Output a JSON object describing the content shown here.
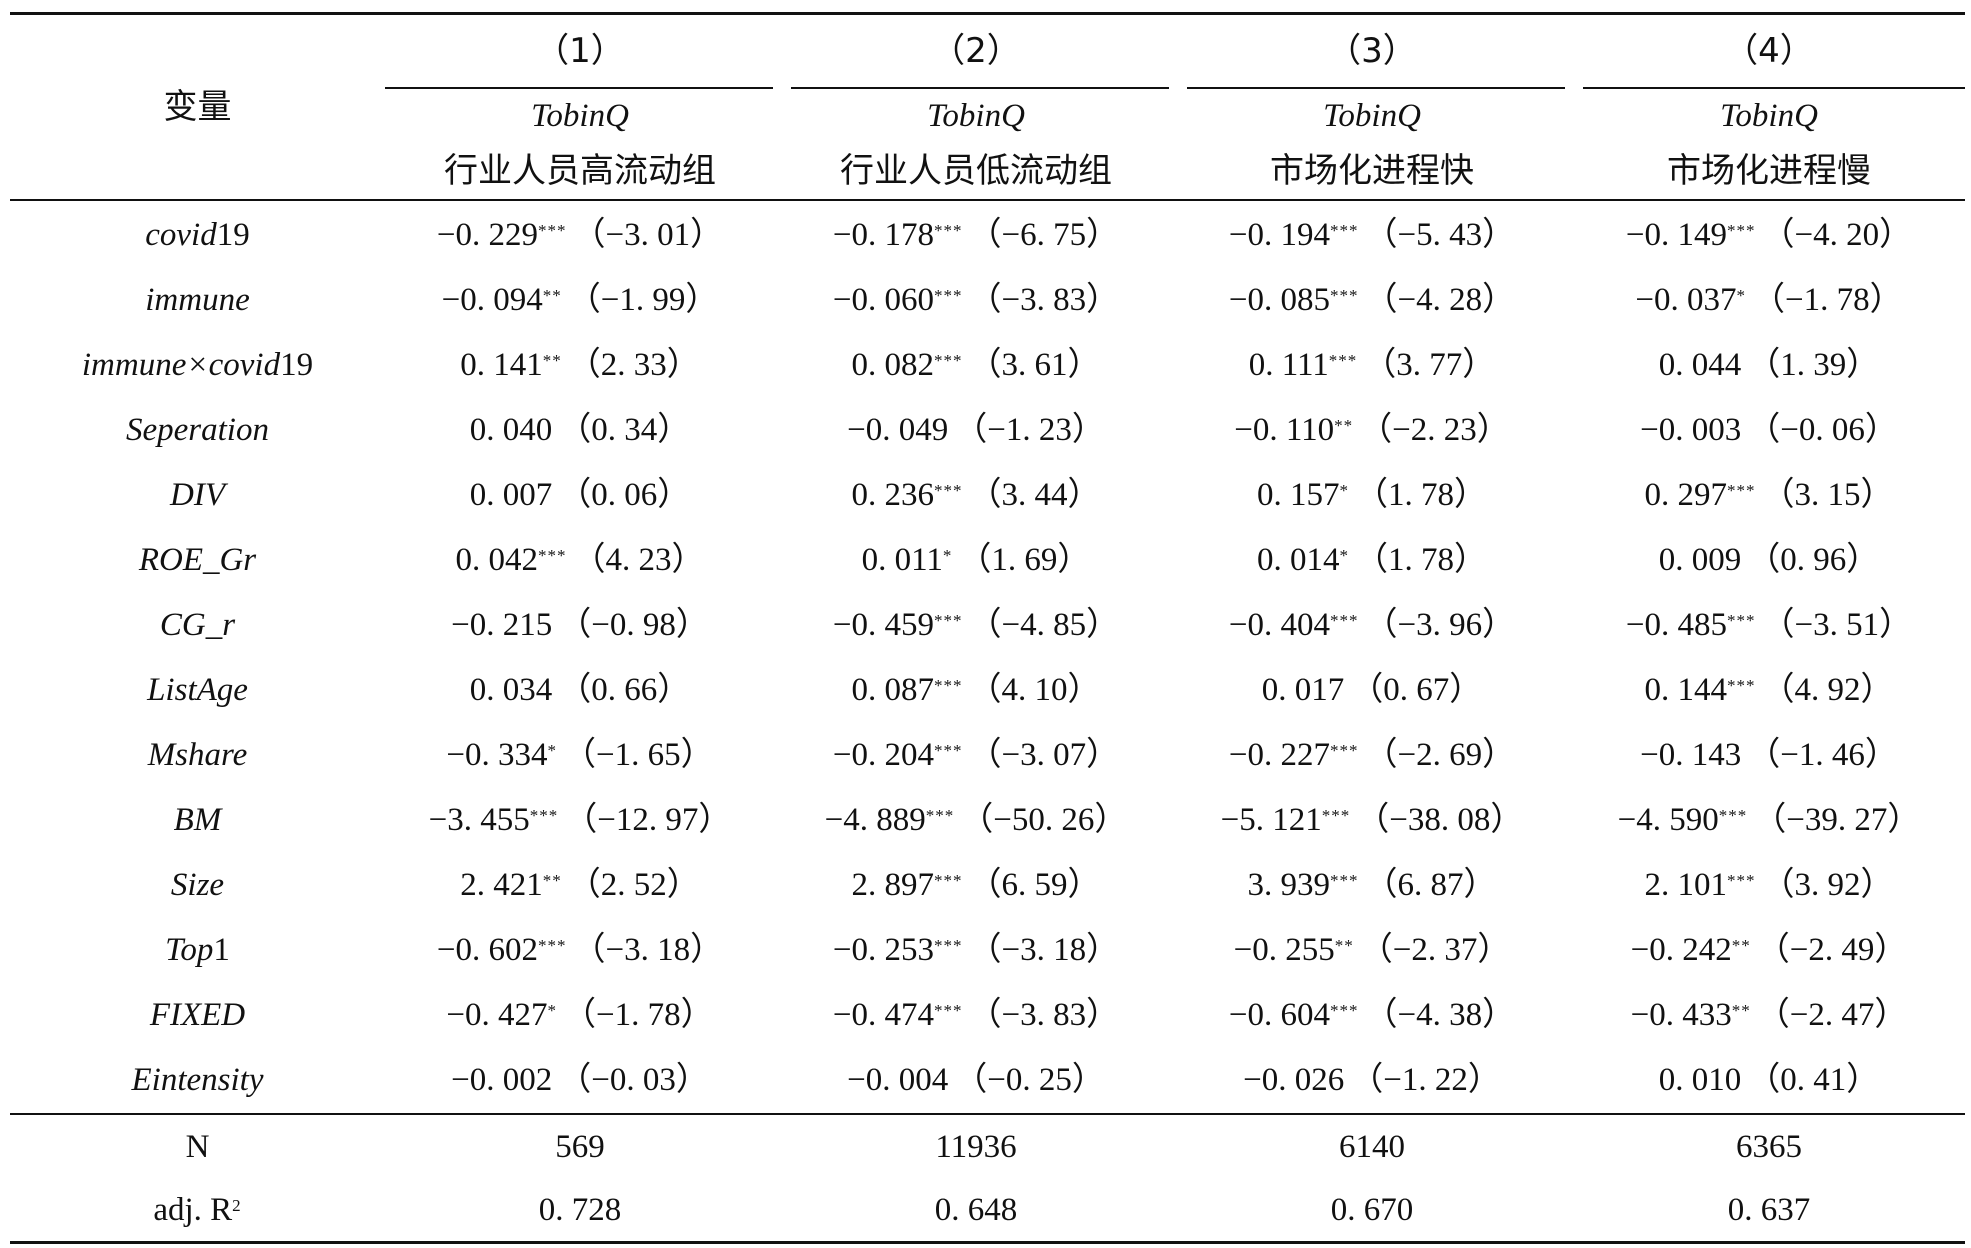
{
  "header": {
    "variable_label": "变量",
    "columns": [
      {
        "number": "（1）",
        "dep_var": "TobinQ",
        "group": "行业人员高流动组"
      },
      {
        "number": "（2）",
        "dep_var": "TobinQ",
        "group": "行业人员低流动组"
      },
      {
        "number": "（3）",
        "dep_var": "TobinQ",
        "group": "市场化进程快"
      },
      {
        "number": "（4）",
        "dep_var": "TobinQ",
        "group": "市场化进程慢"
      }
    ]
  },
  "rows": [
    {
      "name_main": "covid",
      "name_suffix": "19",
      "cells": [
        {
          "coef": "−0. 229",
          "stars": "***",
          "t": "（−3. 01）"
        },
        {
          "coef": "−0. 178",
          "stars": "***",
          "t": "（−6. 75）"
        },
        {
          "coef": "−0. 194",
          "stars": "***",
          "t": "（−5. 43）"
        },
        {
          "coef": "−0. 149",
          "stars": "***",
          "t": "（−4. 20）"
        }
      ]
    },
    {
      "name_main": "immune",
      "name_suffix": "",
      "cells": [
        {
          "coef": "−0. 094",
          "stars": "**",
          "t": "（−1. 99）"
        },
        {
          "coef": "−0. 060",
          "stars": "***",
          "t": "（−3. 83）"
        },
        {
          "coef": "−0. 085",
          "stars": "***",
          "t": "（−4. 28）"
        },
        {
          "coef": "−0. 037",
          "stars": "*",
          "t": "（−1. 78）"
        }
      ]
    },
    {
      "name_main": "immune×covid",
      "name_suffix": "19",
      "cells": [
        {
          "coef": "0. 141",
          "stars": "**",
          "t": "（2. 33）"
        },
        {
          "coef": "0. 082",
          "stars": "***",
          "t": "（3. 61）"
        },
        {
          "coef": "0. 111",
          "stars": "***",
          "t": "（3. 77）"
        },
        {
          "coef": "0. 044",
          "stars": "",
          "t": "（1. 39）"
        }
      ]
    },
    {
      "name_main": "Seperation",
      "name_suffix": "",
      "cells": [
        {
          "coef": "0. 040",
          "stars": "",
          "t": "（0. 34）"
        },
        {
          "coef": "−0. 049",
          "stars": "",
          "t": "（−1. 23）"
        },
        {
          "coef": "−0. 110",
          "stars": "**",
          "t": "（−2. 23）"
        },
        {
          "coef": "−0. 003",
          "stars": "",
          "t": "（−0. 06）"
        }
      ]
    },
    {
      "name_main": "DIV",
      "name_suffix": "",
      "cells": [
        {
          "coef": "0. 007",
          "stars": "",
          "t": "（0. 06）"
        },
        {
          "coef": "0. 236",
          "stars": "***",
          "t": "（3. 44）"
        },
        {
          "coef": "0. 157",
          "stars": "*",
          "t": "（1. 78）"
        },
        {
          "coef": "0. 297",
          "stars": "***",
          "t": "（3. 15）"
        }
      ]
    },
    {
      "name_main": "ROE_Gr",
      "name_suffix": "",
      "cells": [
        {
          "coef": "0. 042",
          "stars": "***",
          "t": "（4. 23）"
        },
        {
          "coef": "0. 011",
          "stars": "*",
          "t": "（1. 69）"
        },
        {
          "coef": "0. 014",
          "stars": "*",
          "t": "（1. 78）"
        },
        {
          "coef": "0. 009",
          "stars": "",
          "t": "（0. 96）"
        }
      ]
    },
    {
      "name_main": "CG_r",
      "name_suffix": "",
      "cells": [
        {
          "coef": "−0. 215",
          "stars": "",
          "t": "（−0. 98）"
        },
        {
          "coef": "−0. 459",
          "stars": "***",
          "t": "（−4. 85）"
        },
        {
          "coef": "−0. 404",
          "stars": "***",
          "t": "（−3. 96）"
        },
        {
          "coef": "−0. 485",
          "stars": "***",
          "t": "（−3. 51）"
        }
      ]
    },
    {
      "name_main": "ListAge",
      "name_suffix": "",
      "cells": [
        {
          "coef": "0. 034",
          "stars": "",
          "t": "（0. 66）"
        },
        {
          "coef": "0. 087",
          "stars": "***",
          "t": "（4. 10）"
        },
        {
          "coef": "0. 017",
          "stars": "",
          "t": "（0. 67）"
        },
        {
          "coef": "0. 144",
          "stars": "***",
          "t": "（4. 92）"
        }
      ]
    },
    {
      "name_main": "Mshare",
      "name_suffix": "",
      "cells": [
        {
          "coef": "−0. 334",
          "stars": "*",
          "t": "（−1. 65）"
        },
        {
          "coef": "−0. 204",
          "stars": "***",
          "t": "（−3. 07）"
        },
        {
          "coef": "−0. 227",
          "stars": "***",
          "t": "（−2. 69）"
        },
        {
          "coef": "−0. 143",
          "stars": "",
          "t": "（−1. 46）"
        }
      ]
    },
    {
      "name_main": "BM",
      "name_suffix": "",
      "cells": [
        {
          "coef": "−3. 455",
          "stars": "***",
          "t": "（−12. 97）"
        },
        {
          "coef": "−4. 889",
          "stars": "***",
          "t": "（−50. 26）"
        },
        {
          "coef": "−5. 121",
          "stars": "***",
          "t": "（−38. 08）"
        },
        {
          "coef": "−4. 590",
          "stars": "***",
          "t": "（−39. 27）"
        }
      ]
    },
    {
      "name_main": "Size",
      "name_suffix": "",
      "cells": [
        {
          "coef": "2. 421",
          "stars": "**",
          "t": "（2. 52）"
        },
        {
          "coef": "2. 897",
          "stars": "***",
          "t": "（6. 59）"
        },
        {
          "coef": "3. 939",
          "stars": "***",
          "t": "（6. 87）"
        },
        {
          "coef": "2. 101",
          "stars": "***",
          "t": "（3. 92）"
        }
      ]
    },
    {
      "name_main": "Top",
      "name_suffix": "1",
      "cells": [
        {
          "coef": "−0. 602",
          "stars": "***",
          "t": "（−3. 18）"
        },
        {
          "coef": "−0. 253",
          "stars": "***",
          "t": "（−3. 18）"
        },
        {
          "coef": "−0. 255",
          "stars": "**",
          "t": "（−2. 37）"
        },
        {
          "coef": "−0. 242",
          "stars": "**",
          "t": "（−2. 49）"
        }
      ]
    },
    {
      "name_main": "FIXED",
      "name_suffix": "",
      "cells": [
        {
          "coef": "−0. 427",
          "stars": "*",
          "t": "（−1. 78）"
        },
        {
          "coef": "−0. 474",
          "stars": "***",
          "t": "（−3. 83）"
        },
        {
          "coef": "−0. 604",
          "stars": "***",
          "t": "（−4. 38）"
        },
        {
          "coef": "−0. 433",
          "stars": "**",
          "t": "（−2. 47）"
        }
      ]
    },
    {
      "name_main": "Eintensity",
      "name_suffix": "",
      "cells": [
        {
          "coef": "−0. 002",
          "stars": "",
          "t": "（−0. 03）"
        },
        {
          "coef": "−0. 004",
          "stars": "",
          "t": "（−0. 25）"
        },
        {
          "coef": "−0. 026",
          "stars": "",
          "t": "（−1. 22）"
        },
        {
          "coef": "0. 010",
          "stars": "",
          "t": "（0. 41）"
        }
      ]
    }
  ],
  "footer": {
    "n_label": "N",
    "n_values": [
      "569",
      "11936",
      "6140",
      "6365"
    ],
    "r2_label": "adj. R",
    "r2_sup": "2",
    "r2_values": [
      "0. 728",
      "0. 648",
      "0. 670",
      "0. 637"
    ]
  }
}
